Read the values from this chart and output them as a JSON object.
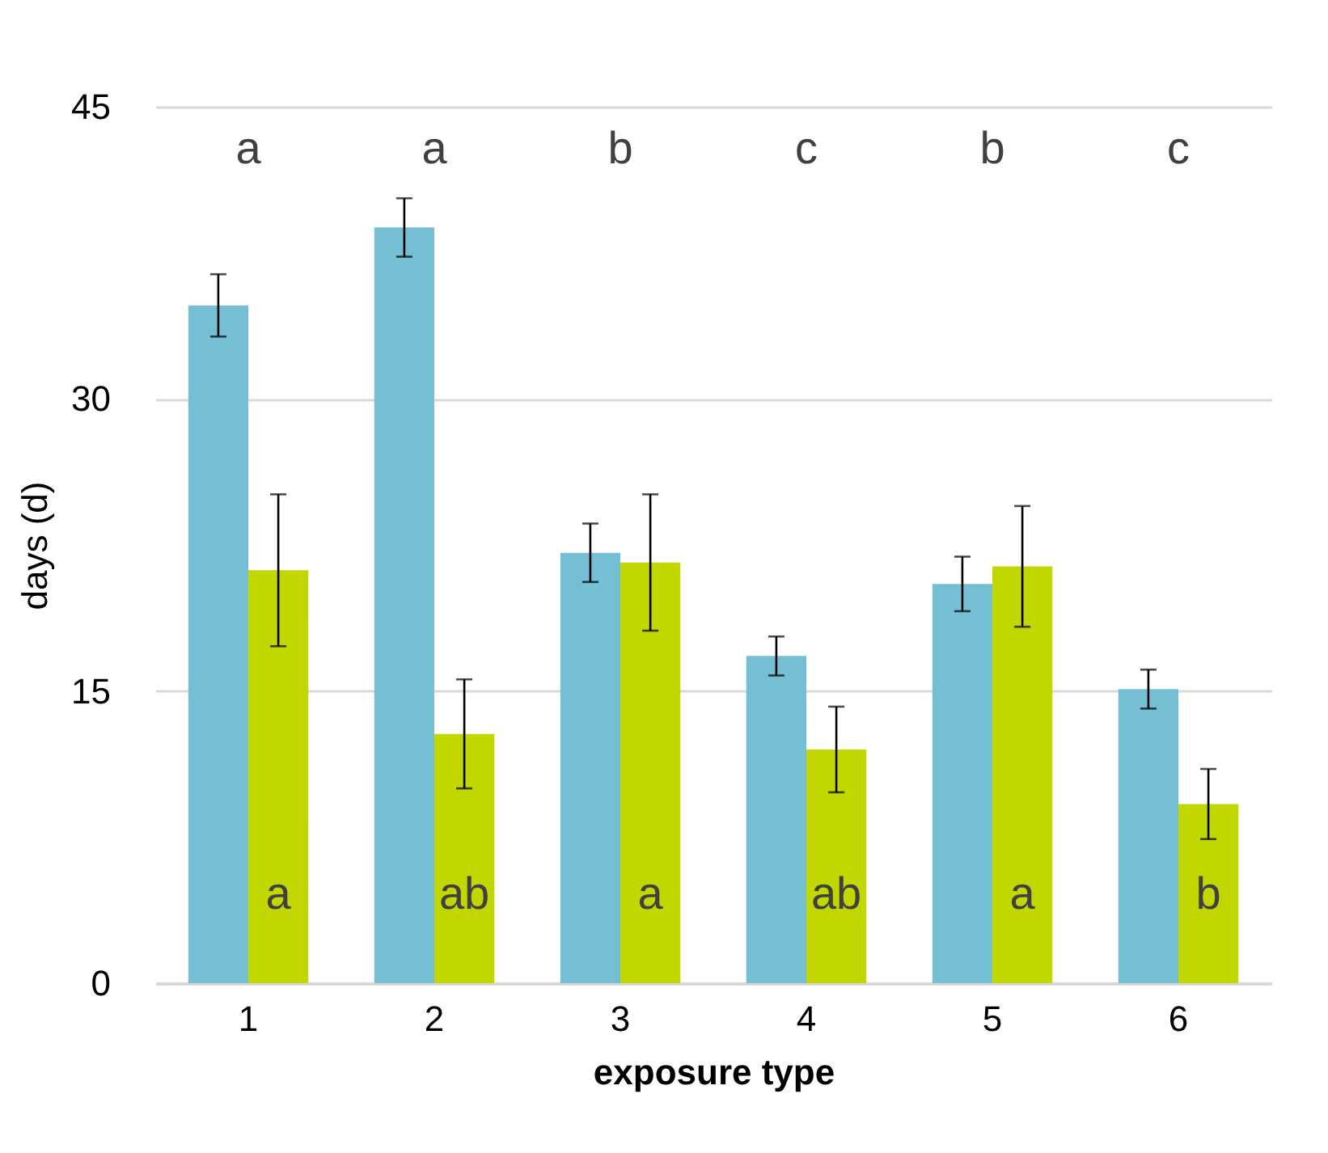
{
  "chart_data": {
    "type": "bar",
    "xlabel": "exposure type",
    "ylabel": "days (d)",
    "categories": [
      "1",
      "2",
      "3",
      "4",
      "5",
      "6"
    ],
    "series": [
      {
        "color": "#74bfd4",
        "values": [
          34.8,
          38.8,
          22.1,
          16.8,
          20.5,
          15.1
        ],
        "errors": [
          1.6,
          1.5,
          1.5,
          1.0,
          1.4,
          1.0
        ]
      },
      {
        "color": "#c2d600",
        "values": [
          21.2,
          12.8,
          21.6,
          12.0,
          21.4,
          9.2
        ],
        "errors": [
          3.9,
          2.8,
          3.5,
          2.2,
          3.1,
          1.8
        ]
      }
    ],
    "ylim": [
      0,
      45
    ],
    "yticks": [
      0,
      15,
      30,
      45
    ],
    "grid": "y",
    "legend": false,
    "annotations": [
      "a",
      "a",
      "b",
      "c",
      "b",
      "c",
      "a",
      "ab",
      "a",
      "ab",
      "a",
      "b"
    ]
  }
}
